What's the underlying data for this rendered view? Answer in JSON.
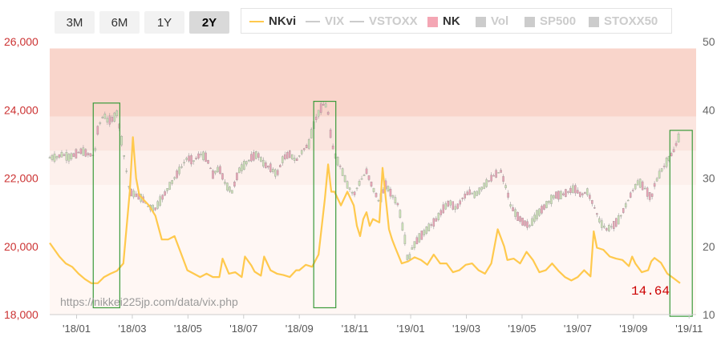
{
  "range_buttons": {
    "b3m": "3M",
    "b6m": "6M",
    "b1y": "1Y",
    "b2y": "2Y",
    "active": "2Y"
  },
  "legend": [
    {
      "key": "nkvi",
      "label": "NKvi",
      "color": "#ffc94d",
      "text_color": "#333333",
      "kind": "line",
      "active": true
    },
    {
      "key": "vix",
      "label": "VIX",
      "color": "#cccccc",
      "text_color": "#cccccc",
      "kind": "line",
      "active": false
    },
    {
      "key": "vstoxx",
      "label": "VSTOXX",
      "color": "#cccccc",
      "text_color": "#cccccc",
      "kind": "line",
      "active": false
    },
    {
      "key": "nk",
      "label": "NK",
      "color": "#f4a6b4",
      "text_color": "#333333",
      "kind": "box",
      "active": true
    },
    {
      "key": "vol",
      "label": "Vol",
      "color": "#cccccc",
      "text_color": "#cccccc",
      "kind": "box",
      "active": false
    },
    {
      "key": "sp500",
      "label": "SP500",
      "color": "#cccccc",
      "text_color": "#cccccc",
      "kind": "box",
      "active": false
    },
    {
      "key": "stoxx50",
      "label": "STOXX50",
      "color": "#cccccc",
      "text_color": "#cccccc",
      "kind": "box",
      "active": false
    }
  ],
  "watermark": "https://nikkei225jp.com/data/vix.php",
  "last_value": "14.64",
  "colors": {
    "left_axis": "#cc3333",
    "right_axis": "#666666",
    "nkvi_line": "#ffc94d",
    "candle_up": "#c9dfb5",
    "candle_down": "#e8a3b5",
    "box_stroke": "#3a9a3a"
  },
  "chart_data": {
    "type": "line",
    "x_tick_labels": [
      "'18/01",
      "'18/03",
      "'18/05",
      "'18/07",
      "'18/09",
      "'18/11",
      "'19/01",
      "'19/03",
      "'19/05",
      "'19/07",
      "'19/09",
      "'19/11"
    ],
    "x_range": [
      "2017-11",
      "2019-11"
    ],
    "left_axis": {
      "ticks": [
        "26,000",
        "24,000",
        "22,000",
        "20,000",
        "18,000"
      ],
      "range": [
        18000,
        26000
      ]
    },
    "right_axis": {
      "ticks": [
        "50",
        "40",
        "30",
        "20",
        "10"
      ],
      "range": [
        10,
        50
      ]
    },
    "bands": [
      {
        "from": 23800,
        "to": 25800,
        "color": "#f9d5cb"
      },
      {
        "from": 22800,
        "to": 23800,
        "color": "#fbe5df"
      },
      {
        "from": 21800,
        "to": 22800,
        "color": "#fdf0ec"
      },
      {
        "from": 18000,
        "to": 21800,
        "color": "#fff7f4"
      }
    ],
    "series": [
      {
        "name": "NKvi",
        "axis": "right",
        "values": [
          [
            0,
            20.5
          ],
          [
            3,
            18.5
          ],
          [
            5,
            17.5
          ],
          [
            7,
            17
          ],
          [
            9,
            16
          ],
          [
            11,
            15.2
          ],
          [
            13,
            14.6
          ],
          [
            15,
            14.6
          ],
          [
            17,
            15.5
          ],
          [
            19,
            16
          ],
          [
            21,
            16.4
          ],
          [
            23,
            17.5
          ],
          [
            25,
            28
          ],
          [
            26,
            36
          ],
          [
            27,
            30
          ],
          [
            28,
            27.5
          ],
          [
            29,
            27
          ],
          [
            31,
            26
          ],
          [
            33,
            24.5
          ],
          [
            35,
            21
          ],
          [
            37,
            21
          ],
          [
            39,
            21.5
          ],
          [
            41,
            19
          ],
          [
            43,
            16.5
          ],
          [
            45,
            16
          ],
          [
            47,
            15.5
          ],
          [
            49,
            16
          ],
          [
            51,
            15.5
          ],
          [
            53,
            15.5
          ],
          [
            54,
            18.2
          ],
          [
            56,
            16
          ],
          [
            58,
            16.2
          ],
          [
            60,
            15.5
          ],
          [
            61,
            18.5
          ],
          [
            63,
            17.2
          ],
          [
            64,
            16.3
          ],
          [
            66,
            15.7
          ],
          [
            67,
            18.5
          ],
          [
            69,
            16.5
          ],
          [
            71,
            16
          ],
          [
            73,
            15.8
          ],
          [
            75,
            15.5
          ],
          [
            77,
            16.5
          ],
          [
            78,
            16.5
          ],
          [
            80,
            17.3
          ],
          [
            82,
            17
          ],
          [
            84,
            18.8
          ],
          [
            86,
            27
          ],
          [
            87,
            32
          ],
          [
            88,
            28
          ],
          [
            89,
            28
          ],
          [
            91,
            26
          ],
          [
            93,
            28
          ],
          [
            95,
            26
          ],
          [
            96,
            23
          ],
          [
            97,
            21.5
          ],
          [
            98,
            24
          ],
          [
            99,
            25
          ],
          [
            100,
            23
          ],
          [
            101,
            24
          ],
          [
            103,
            23.5
          ],
          [
            104,
            31.5
          ],
          [
            105,
            27
          ],
          [
            106,
            22.5
          ],
          [
            107,
            21
          ],
          [
            108,
            19.8
          ],
          [
            110,
            17.5
          ],
          [
            112,
            17.8
          ],
          [
            114,
            18.4
          ],
          [
            116,
            18
          ],
          [
            118,
            17.3
          ],
          [
            120,
            18.8
          ],
          [
            122,
            17.5
          ],
          [
            124,
            17.5
          ],
          [
            126,
            16.2
          ],
          [
            128,
            16.5
          ],
          [
            130,
            17.3
          ],
          [
            132,
            17.5
          ],
          [
            134,
            16.5
          ],
          [
            136,
            16
          ],
          [
            138,
            17.5
          ],
          [
            140,
            22.5
          ],
          [
            142,
            20
          ],
          [
            143,
            18
          ],
          [
            145,
            18.2
          ],
          [
            147,
            17.5
          ],
          [
            149,
            19.2
          ],
          [
            151,
            18
          ],
          [
            153,
            16.2
          ],
          [
            155,
            16.5
          ],
          [
            157,
            17.5
          ],
          [
            159,
            16.4
          ],
          [
            161,
            15.5
          ],
          [
            163,
            15
          ],
          [
            165,
            15.5
          ],
          [
            167,
            16.5
          ],
          [
            169,
            15.6
          ],
          [
            170,
            22.2
          ],
          [
            171,
            19.8
          ],
          [
            173,
            19.5
          ],
          [
            175,
            18.5
          ],
          [
            177,
            18.2
          ],
          [
            179,
            18
          ],
          [
            181,
            17.1
          ],
          [
            182,
            18.5
          ],
          [
            183,
            17.5
          ],
          [
            185,
            16.2
          ],
          [
            187,
            16.5
          ],
          [
            188,
            17.8
          ],
          [
            189,
            18.3
          ],
          [
            191,
            17.6
          ],
          [
            193,
            16
          ],
          [
            195,
            15.3
          ],
          [
            197,
            14.6
          ]
        ]
      },
      {
        "name": "NK",
        "axis": "left",
        "values": [
          [
            0,
            22600
          ],
          [
            2,
            22600
          ],
          [
            4,
            22700
          ],
          [
            6,
            22600
          ],
          [
            8,
            22700
          ],
          [
            10,
            22800
          ],
          [
            12,
            22700
          ],
          [
            14,
            22650
          ],
          [
            15,
            23400
          ],
          [
            16,
            23700
          ],
          [
            17,
            23850
          ],
          [
            18,
            23700
          ],
          [
            19,
            23700
          ],
          [
            20,
            23750
          ],
          [
            21,
            23900
          ],
          [
            22,
            23400
          ],
          [
            23,
            22800
          ],
          [
            24,
            22200
          ],
          [
            25,
            21600
          ],
          [
            27,
            21500
          ],
          [
            29,
            21400
          ],
          [
            31,
            21150
          ],
          [
            33,
            21100
          ],
          [
            35,
            21400
          ],
          [
            37,
            21700
          ],
          [
            39,
            22000
          ],
          [
            41,
            22300
          ],
          [
            43,
            22600
          ],
          [
            45,
            22500
          ],
          [
            47,
            22700
          ],
          [
            49,
            22600
          ],
          [
            51,
            22100
          ],
          [
            53,
            22300
          ],
          [
            55,
            21800
          ],
          [
            57,
            21600
          ],
          [
            59,
            22200
          ],
          [
            61,
            22400
          ],
          [
            63,
            22600
          ],
          [
            65,
            22700
          ],
          [
            67,
            22400
          ],
          [
            69,
            22300
          ],
          [
            71,
            22100
          ],
          [
            73,
            22600
          ],
          [
            75,
            22700
          ],
          [
            77,
            22500
          ],
          [
            79,
            22800
          ],
          [
            81,
            23000
          ],
          [
            82,
            23400
          ],
          [
            83,
            23700
          ],
          [
            84,
            23900
          ],
          [
            85,
            24100
          ],
          [
            86,
            24200
          ],
          [
            87,
            23900
          ],
          [
            88,
            23100
          ],
          [
            89,
            22700
          ],
          [
            91,
            22300
          ],
          [
            93,
            21800
          ],
          [
            95,
            21500
          ],
          [
            97,
            21900
          ],
          [
            99,
            22200
          ],
          [
            101,
            21700
          ],
          [
            103,
            21300
          ],
          [
            105,
            21800
          ],
          [
            107,
            21500
          ],
          [
            109,
            21200
          ],
          [
            111,
            20200
          ],
          [
            112,
            19500
          ],
          [
            113,
            19900
          ],
          [
            115,
            20200
          ],
          [
            117,
            20400
          ],
          [
            119,
            20600
          ],
          [
            121,
            20800
          ],
          [
            123,
            21100
          ],
          [
            125,
            21300
          ],
          [
            127,
            21100
          ],
          [
            129,
            21400
          ],
          [
            131,
            21600
          ],
          [
            133,
            21500
          ],
          [
            135,
            21700
          ],
          [
            137,
            21900
          ],
          [
            139,
            22100
          ],
          [
            141,
            22200
          ],
          [
            143,
            21600
          ],
          [
            144,
            21200
          ],
          [
            146,
            20900
          ],
          [
            148,
            20700
          ],
          [
            150,
            20600
          ],
          [
            152,
            20900
          ],
          [
            154,
            21100
          ],
          [
            156,
            21300
          ],
          [
            158,
            21500
          ],
          [
            160,
            21500
          ],
          [
            162,
            21600
          ],
          [
            164,
            21700
          ],
          [
            166,
            21500
          ],
          [
            168,
            21600
          ],
          [
            170,
            21200
          ],
          [
            172,
            20700
          ],
          [
            174,
            20500
          ],
          [
            176,
            20600
          ],
          [
            178,
            20800
          ],
          [
            180,
            21200
          ],
          [
            182,
            21600
          ],
          [
            184,
            21900
          ],
          [
            186,
            21700
          ],
          [
            188,
            21400
          ],
          [
            189,
            21800
          ],
          [
            191,
            22200
          ],
          [
            193,
            22500
          ],
          [
            195,
            22800
          ],
          [
            197,
            23300
          ]
        ]
      }
    ],
    "annotations": [
      {
        "type": "box",
        "from": 13.6,
        "to": 21.9,
        "y_low": 18200,
        "y_high": 24200
      },
      {
        "type": "box",
        "from": 82.5,
        "to": 89.4,
        "y_low": 18200,
        "y_high": 24250
      },
      {
        "type": "box",
        "from": 193.8,
        "to": 200.8,
        "y_low": 17950,
        "y_high": 23400
      }
    ],
    "grid": false
  }
}
